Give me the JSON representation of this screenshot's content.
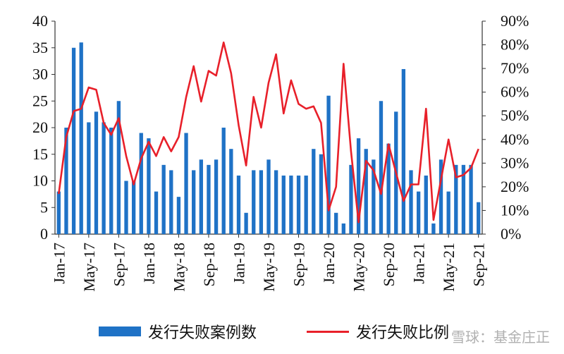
{
  "chart_data": {
    "type": "bar+line",
    "x": [
      "Jan-17",
      "Feb-17",
      "Mar-17",
      "Apr-17",
      "May-17",
      "Jun-17",
      "Jul-17",
      "Aug-17",
      "Sep-17",
      "Oct-17",
      "Nov-17",
      "Dec-17",
      "Jan-18",
      "Feb-18",
      "Mar-18",
      "Apr-18",
      "May-18",
      "Jun-18",
      "Jul-18",
      "Aug-18",
      "Sep-18",
      "Oct-18",
      "Nov-18",
      "Dec-18",
      "Jan-19",
      "Feb-19",
      "Mar-19",
      "Apr-19",
      "May-19",
      "Jun-19",
      "Jul-19",
      "Aug-19",
      "Sep-19",
      "Oct-19",
      "Nov-19",
      "Dec-19",
      "Jan-20",
      "Feb-20",
      "Mar-20",
      "Apr-20",
      "May-20",
      "Jun-20",
      "Jul-20",
      "Aug-20",
      "Sep-20",
      "Oct-20",
      "Nov-20",
      "Dec-20",
      "Jan-21",
      "Feb-21",
      "Mar-21",
      "Apr-21",
      "May-21",
      "Jun-21",
      "Jul-21",
      "Aug-21",
      "Sep-21"
    ],
    "x_tick_labels": [
      "Jan-17",
      "May-17",
      "Sep-17",
      "Jan-18",
      "May-18",
      "Sep-18",
      "Jan-19",
      "May-19",
      "Sep-19",
      "Jan-20",
      "May-20",
      "Sep-20",
      "Jan-21",
      "May-21",
      "Sep-21"
    ],
    "series": [
      {
        "name": "发行失败案例数",
        "type": "bar",
        "axis": "left",
        "color": "#1f72c6",
        "values": [
          8,
          20,
          35,
          36,
          21,
          23,
          21,
          20,
          25,
          10,
          10,
          19,
          18,
          8,
          13,
          12,
          7,
          19,
          12,
          14,
          13,
          14,
          20,
          16,
          11,
          4,
          12,
          12,
          14,
          12,
          11,
          11,
          11,
          11,
          16,
          15,
          26,
          4,
          2,
          13,
          18,
          16,
          14,
          25,
          17,
          23,
          31,
          12,
          8,
          11,
          2,
          14,
          8,
          13,
          13,
          13,
          6
        ]
      },
      {
        "name": "发行失败比例",
        "type": "line",
        "axis": "right",
        "color": "#e8202a",
        "values": [
          0.17,
          0.41,
          0.52,
          0.53,
          0.62,
          0.61,
          0.47,
          0.42,
          0.49,
          0.33,
          0.21,
          0.32,
          0.39,
          0.33,
          0.41,
          0.35,
          0.41,
          0.58,
          0.71,
          0.56,
          0.69,
          0.67,
          0.81,
          0.68,
          0.46,
          0.29,
          0.58,
          0.45,
          0.64,
          0.76,
          0.51,
          0.65,
          0.55,
          0.53,
          0.54,
          0.47,
          0.1,
          0.2,
          0.72,
          0.35,
          0.05,
          0.31,
          0.27,
          0.17,
          0.38,
          0.26,
          0.14,
          0.21,
          0.21,
          0.53,
          0.06,
          0.23,
          0.4,
          0.24,
          0.25,
          0.28,
          0.36
        ]
      }
    ],
    "y_left": {
      "ticks": [
        "0",
        "5",
        "10",
        "15",
        "20",
        "25",
        "30",
        "35",
        "40"
      ],
      "ylim": [
        0,
        40
      ]
    },
    "y_right": {
      "ticks": [
        "0%",
        "10%",
        "20%",
        "30%",
        "40%",
        "50%",
        "60%",
        "70%",
        "80%",
        "90%"
      ],
      "ylim": [
        0,
        0.9
      ]
    },
    "grid": false,
    "legend_position": "bottom"
  },
  "legend": {
    "bar_label": "发行失败案例数",
    "line_label": "发行失败比例"
  },
  "watermark": "雪球：基金庄正"
}
